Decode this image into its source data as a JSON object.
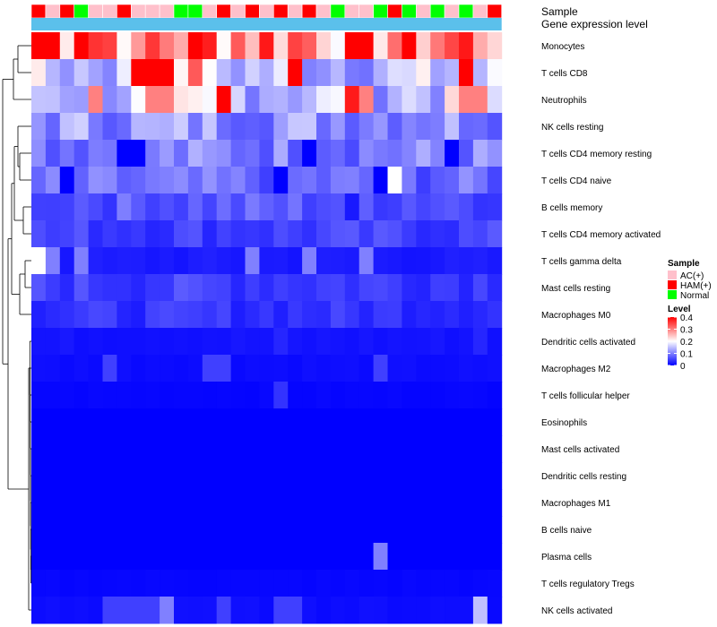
{
  "chart_data": {
    "type": "heatmap",
    "title": "",
    "annotation_rows": [
      {
        "name": "Sample",
        "label": "Sample"
      },
      {
        "name": "Gene expression level",
        "label": "Gene expression level"
      }
    ],
    "sample_colors": {
      "AC(+)": "#FFC0CB",
      "HAM(+)": "#FF0000",
      "Normal": "#00FF00"
    },
    "gene_expression_color": "#5BC0EB",
    "samples": [
      "HAM(+)",
      "AC(+)",
      "HAM(+)",
      "Normal",
      "AC(+)",
      "AC(+)",
      "HAM(+)",
      "AC(+)",
      "AC(+)",
      "AC(+)",
      "Normal",
      "Normal",
      "AC(+)",
      "HAM(+)",
      "AC(+)",
      "HAM(+)",
      "AC(+)",
      "HAM(+)",
      "AC(+)",
      "HAM(+)",
      "AC(+)",
      "Normal",
      "AC(+)",
      "AC(+)",
      "Normal",
      "HAM(+)",
      "Normal",
      "AC(+)",
      "Normal",
      "AC(+)",
      "Normal",
      "AC(+)",
      "HAM(+)"
    ],
    "rows": [
      "Monocytes",
      "T cells CD8",
      "Neutrophils",
      "NK cells resting",
      "T cells CD4 memory resting",
      "T cells CD4 naive",
      "B cells memory",
      "T cells CD4 memory activated",
      "T cells gamma delta",
      "Mast cells resting",
      "Macrophages M0",
      "Dendritic cells activated",
      "Macrophages M2",
      "T cells follicular helper",
      "Eosinophils",
      "Mast cells activated",
      "Dendritic cells resting",
      "Macrophages M1",
      "B cells naive",
      "Plasma cells",
      "T cells regulatory  Tregs",
      "NK cells activated"
    ],
    "row_base": [
      0.33,
      0.15,
      0.16,
      0.12,
      0.1,
      0.08,
      0.07,
      0.05,
      0.02,
      0.05,
      0.04,
      0.015,
      0.01,
      0.005,
      0.0,
      0.0,
      0.0,
      0.0,
      0.0,
      0.0,
      0.005,
      0.01
    ],
    "overrides": [
      [
        0,
        0,
        0.4
      ],
      [
        0,
        1,
        0.4
      ],
      [
        0,
        3,
        0.4
      ],
      [
        0,
        4,
        0.36
      ],
      [
        0,
        5,
        0.35
      ],
      [
        0,
        7,
        0.28
      ],
      [
        1,
        7,
        0.4
      ],
      [
        1,
        8,
        0.4
      ],
      [
        1,
        9,
        0.4
      ],
      [
        1,
        11,
        0.33
      ],
      [
        1,
        18,
        0.4
      ],
      [
        1,
        30,
        0.4
      ],
      [
        2,
        4,
        0.3
      ],
      [
        2,
        8,
        0.3
      ],
      [
        2,
        9,
        0.3
      ],
      [
        2,
        13,
        0.4
      ],
      [
        2,
        22,
        0.38
      ],
      [
        2,
        23,
        0.3
      ],
      [
        2,
        30,
        0.3
      ],
      [
        2,
        31,
        0.3
      ],
      [
        4,
        6,
        0
      ],
      [
        4,
        7,
        0
      ],
      [
        4,
        19,
        0
      ],
      [
        4,
        29,
        0
      ],
      [
        5,
        2,
        0
      ],
      [
        5,
        17,
        0
      ],
      [
        5,
        24,
        0
      ],
      [
        5,
        25,
        0.2
      ],
      [
        6,
        0,
        0.05
      ],
      [
        6,
        8,
        0.05
      ],
      [
        6,
        22,
        0.02
      ],
      [
        8,
        0,
        0.2
      ],
      [
        8,
        1,
        0.1
      ],
      [
        8,
        3,
        0.1
      ],
      [
        8,
        15,
        0.1
      ],
      [
        8,
        19,
        0.1
      ],
      [
        8,
        23,
        0.1
      ],
      [
        11,
        17,
        0.03
      ],
      [
        11,
        31,
        0.03
      ],
      [
        12,
        5,
        0.05
      ],
      [
        12,
        12,
        0.05
      ],
      [
        12,
        13,
        0.05
      ],
      [
        12,
        24,
        0.05
      ],
      [
        13,
        17,
        0.04
      ],
      [
        19,
        24,
        0.1
      ],
      [
        21,
        5,
        0.05
      ],
      [
        21,
        6,
        0.05
      ],
      [
        21,
        7,
        0.05
      ],
      [
        21,
        8,
        0.05
      ],
      [
        21,
        9,
        0.1
      ],
      [
        21,
        13,
        0.05
      ],
      [
        21,
        17,
        0.05
      ],
      [
        21,
        18,
        0.05
      ],
      [
        21,
        31,
        0.15
      ]
    ],
    "legend": {
      "sample_title": "Sample",
      "sample_entries": [
        "AC(+)",
        "HAM(+)",
        "Normal"
      ],
      "level_title": "Level",
      "level_ticks": [
        "0",
        "0.1",
        "0.2",
        "0.3",
        "0.4"
      ],
      "level_range": [
        0,
        0.4
      ],
      "colors": {
        "low": "#0000FF",
        "mid": "#FFFFFF",
        "high": "#FF0000"
      }
    }
  }
}
